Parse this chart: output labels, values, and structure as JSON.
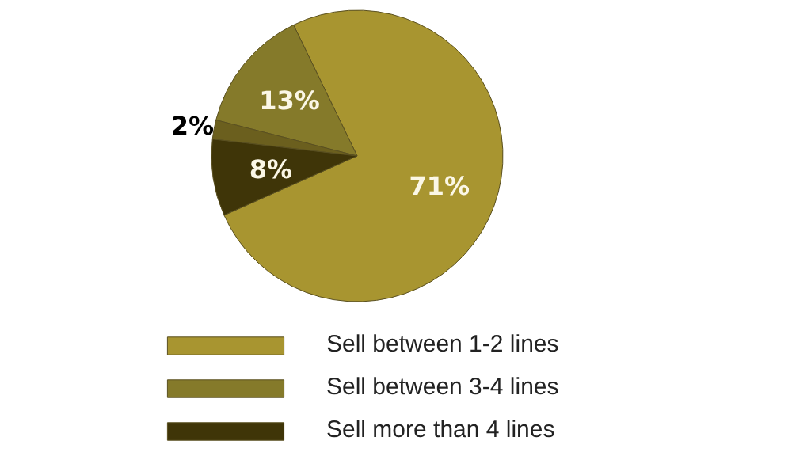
{
  "chart_data": {
    "type": "pie",
    "categories": [
      "Sell between 1-2 lines",
      "Sell between 3-4 lines",
      null,
      "Sell more than 4 lines"
    ],
    "values": [
      71,
      13,
      2,
      8
    ],
    "colors": [
      "#a89530",
      "#857a2a",
      "#6b5f1e",
      "#3f3508"
    ],
    "value_labels": [
      "71%",
      "13%",
      "2%",
      "8%"
    ],
    "legend": "bottom"
  }
}
